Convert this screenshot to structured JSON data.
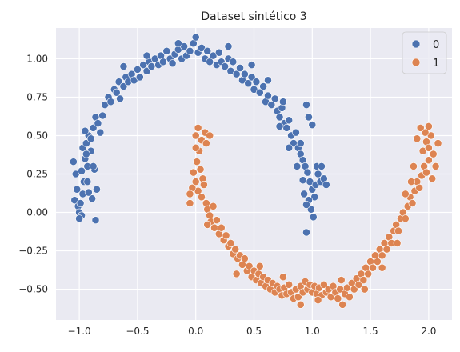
{
  "chart_data": {
    "type": "scatter",
    "title": "Dataset sintético 3",
    "xlabel": "",
    "ylabel": "",
    "xlim": [
      -1.2,
      2.2
    ],
    "ylim": [
      -0.7,
      1.2
    ],
    "x_ticks": [
      -1.0,
      -0.5,
      0.0,
      0.5,
      1.0,
      1.5,
      2.0
    ],
    "y_ticks": [
      -0.5,
      -0.25,
      0.0,
      0.25,
      0.5,
      0.75,
      1.0
    ],
    "x_tick_labels": [
      "−1.0",
      "−0.5",
      "0.0",
      "0.5",
      "1.0",
      "1.5",
      "2.0"
    ],
    "y_tick_labels": [
      "−0.50",
      "−0.25",
      "0.00",
      "0.25",
      "0.50",
      "0.75",
      "1.00"
    ],
    "grid": true,
    "legend_position": "top-right",
    "colors": {
      "background": "#eaeaf2",
      "grid": "#ffffff",
      "series0": "#4c72b0",
      "series1": "#dd8452",
      "marker_edge": "#ffffff"
    },
    "series": [
      {
        "name": "0",
        "color": "#4c72b0",
        "points": [
          [
            -1.05,
            0.33
          ],
          [
            -1.03,
            0.25
          ],
          [
            -1.02,
            0.15
          ],
          [
            -1.04,
            0.08
          ],
          [
            -1.01,
            0.04
          ],
          [
            -1.0,
            0.0
          ],
          [
            -0.98,
            -0.02
          ],
          [
            -0.99,
            0.06
          ],
          [
            -0.97,
            0.12
          ],
          [
            -0.96,
            0.2
          ],
          [
            -0.98,
            0.27
          ],
          [
            -0.95,
            0.35
          ],
          [
            -0.93,
            0.3
          ],
          [
            -0.97,
            0.42
          ],
          [
            -0.94,
            0.45
          ],
          [
            -0.92,
            0.5
          ],
          [
            -0.9,
            0.48
          ],
          [
            -0.95,
            0.53
          ],
          [
            -0.88,
            0.55
          ],
          [
            -0.9,
            0.4
          ],
          [
            -0.87,
            0.28
          ],
          [
            -0.93,
            0.2
          ],
          [
            -0.85,
            0.15
          ],
          [
            -0.89,
            0.09
          ],
          [
            -0.92,
            0.13
          ],
          [
            -0.86,
            0.62
          ],
          [
            -0.84,
            0.58
          ],
          [
            -0.8,
            0.63
          ],
          [
            -0.82,
            0.52
          ],
          [
            -0.78,
            0.7
          ],
          [
            -0.75,
            0.75
          ],
          [
            -0.73,
            0.72
          ],
          [
            -0.7,
            0.8
          ],
          [
            -0.68,
            0.78
          ],
          [
            -0.66,
            0.85
          ],
          [
            -0.65,
            0.74
          ],
          [
            -0.62,
            0.82
          ],
          [
            -0.6,
            0.88
          ],
          [
            -0.58,
            0.85
          ],
          [
            -0.55,
            0.9
          ],
          [
            -0.53,
            0.86
          ],
          [
            -0.5,
            0.93
          ],
          [
            -0.48,
            0.88
          ],
          [
            -0.45,
            0.96
          ],
          [
            -0.42,
            0.92
          ],
          [
            -0.4,
            0.98
          ],
          [
            -0.38,
            0.95
          ],
          [
            -0.35,
            1.0
          ],
          [
            -0.32,
            0.96
          ],
          [
            -0.3,
            1.02
          ],
          [
            -0.28,
            0.98
          ],
          [
            -0.25,
            1.05
          ],
          [
            -0.22,
            1.0
          ],
          [
            -0.2,
            0.97
          ],
          [
            -0.18,
            1.03
          ],
          [
            -0.15,
            1.06
          ],
          [
            -0.12,
            1.0
          ],
          [
            -0.1,
            1.08
          ],
          [
            -0.08,
            1.02
          ],
          [
            -0.05,
            1.05
          ],
          [
            -0.02,
            1.1
          ],
          [
            0.0,
            1.14
          ],
          [
            0.02,
            1.04
          ],
          [
            0.05,
            1.07
          ],
          [
            0.08,
            1.0
          ],
          [
            0.1,
            1.05
          ],
          [
            0.12,
            0.98
          ],
          [
            0.15,
            1.02
          ],
          [
            0.18,
            0.96
          ],
          [
            0.2,
            1.04
          ],
          [
            0.22,
            0.98
          ],
          [
            0.25,
            0.95
          ],
          [
            0.28,
            1.0
          ],
          [
            0.3,
            0.92
          ],
          [
            0.32,
            0.98
          ],
          [
            0.35,
            0.9
          ],
          [
            0.38,
            0.94
          ],
          [
            0.4,
            0.86
          ],
          [
            0.42,
            0.9
          ],
          [
            0.45,
            0.84
          ],
          [
            0.48,
            0.88
          ],
          [
            0.5,
            0.8
          ],
          [
            0.52,
            0.85
          ],
          [
            0.55,
            0.78
          ],
          [
            0.58,
            0.82
          ],
          [
            0.6,
            0.72
          ],
          [
            0.62,
            0.76
          ],
          [
            0.65,
            0.7
          ],
          [
            0.68,
            0.74
          ],
          [
            0.7,
            0.66
          ],
          [
            0.72,
            0.62
          ],
          [
            0.74,
            0.68
          ],
          [
            0.76,
            0.58
          ],
          [
            0.78,
            0.55
          ],
          [
            0.8,
            0.6
          ],
          [
            0.82,
            0.5
          ],
          [
            0.84,
            0.45
          ],
          [
            0.86,
            0.52
          ],
          [
            0.88,
            0.42
          ],
          [
            0.9,
            0.38
          ],
          [
            0.92,
            0.34
          ],
          [
            0.94,
            0.3
          ],
          [
            0.96,
            0.26
          ],
          [
            0.98,
            0.2
          ],
          [
            1.0,
            0.15
          ],
          [
            1.02,
            0.1
          ],
          [
            0.97,
            0.08
          ],
          [
            0.99,
            0.02
          ],
          [
            1.01,
            -0.03
          ],
          [
            0.95,
            0.05
          ],
          [
            0.93,
            0.12
          ],
          [
            1.03,
            0.18
          ],
          [
            1.05,
            0.25
          ],
          [
            1.07,
            0.2
          ],
          [
            1.04,
            0.3
          ],
          [
            1.08,
            0.3
          ],
          [
            1.1,
            0.22
          ],
          [
            1.12,
            0.18
          ],
          [
            0.97,
            0.62
          ],
          [
            0.95,
            0.7
          ],
          [
            1.0,
            0.57
          ],
          [
            0.9,
            0.45
          ],
          [
            -0.62,
            0.95
          ],
          [
            -0.42,
            1.02
          ],
          [
            -0.15,
            1.1
          ],
          [
            0.28,
            1.08
          ],
          [
            0.48,
            0.96
          ],
          [
            0.62,
            0.86
          ],
          [
            0.75,
            0.72
          ],
          [
            0.72,
            0.56
          ],
          [
            0.8,
            0.42
          ],
          [
            0.87,
            0.3
          ],
          [
            0.92,
            0.21
          ],
          [
            -1.0,
            -0.04
          ],
          [
            -0.86,
            -0.05
          ],
          [
            -0.88,
            0.3
          ],
          [
            -0.94,
            0.38
          ],
          [
            0.95,
            -0.13
          ]
        ]
      },
      {
        "name": "1",
        "color": "#dd8452",
        "points": [
          [
            0.0,
            0.5
          ],
          [
            0.02,
            0.55
          ],
          [
            0.05,
            0.47
          ],
          [
            0.08,
            0.52
          ],
          [
            0.12,
            0.5
          ],
          [
            0.03,
            0.4
          ],
          [
            0.01,
            0.33
          ],
          [
            0.04,
            0.28
          ],
          [
            0.06,
            0.22
          ],
          [
            0.0,
            0.2
          ],
          [
            0.02,
            0.14
          ],
          [
            0.05,
            0.1
          ],
          [
            -0.03,
            0.16
          ],
          [
            -0.05,
            0.12
          ],
          [
            0.07,
            0.18
          ],
          [
            0.09,
            0.06
          ],
          [
            0.1,
            0.02
          ],
          [
            0.12,
            -0.02
          ],
          [
            0.15,
            0.04
          ],
          [
            0.13,
            -0.06
          ],
          [
            0.16,
            -0.1
          ],
          [
            0.18,
            -0.05
          ],
          [
            0.2,
            -0.14
          ],
          [
            0.22,
            -0.1
          ],
          [
            0.24,
            -0.18
          ],
          [
            0.26,
            -0.15
          ],
          [
            0.28,
            -0.22
          ],
          [
            0.3,
            -0.2
          ],
          [
            0.32,
            -0.27
          ],
          [
            0.34,
            -0.24
          ],
          [
            0.36,
            -0.3
          ],
          [
            0.38,
            -0.28
          ],
          [
            0.4,
            -0.34
          ],
          [
            0.42,
            -0.3
          ],
          [
            0.44,
            -0.38
          ],
          [
            0.46,
            -0.35
          ],
          [
            0.48,
            -0.42
          ],
          [
            0.5,
            -0.38
          ],
          [
            0.52,
            -0.44
          ],
          [
            0.54,
            -0.4
          ],
          [
            0.56,
            -0.46
          ],
          [
            0.58,
            -0.42
          ],
          [
            0.6,
            -0.48
          ],
          [
            0.62,
            -0.44
          ],
          [
            0.64,
            -0.5
          ],
          [
            0.66,
            -0.46
          ],
          [
            0.68,
            -0.52
          ],
          [
            0.7,
            -0.48
          ],
          [
            0.72,
            -0.5
          ],
          [
            0.74,
            -0.54
          ],
          [
            0.76,
            -0.49
          ],
          [
            0.78,
            -0.53
          ],
          [
            0.8,
            -0.47
          ],
          [
            0.82,
            -0.52
          ],
          [
            0.84,
            -0.56
          ],
          [
            0.86,
            -0.5
          ],
          [
            0.88,
            -0.55
          ],
          [
            0.9,
            -0.48
          ],
          [
            0.92,
            -0.52
          ],
          [
            0.94,
            -0.45
          ],
          [
            0.96,
            -0.5
          ],
          [
            0.98,
            -0.47
          ],
          [
            1.0,
            -0.52
          ],
          [
            1.02,
            -0.48
          ],
          [
            1.04,
            -0.53
          ],
          [
            1.06,
            -0.49
          ],
          [
            1.08,
            -0.54
          ],
          [
            1.1,
            -0.47
          ],
          [
            1.12,
            -0.52
          ],
          [
            1.14,
            -0.5
          ],
          [
            1.16,
            -0.55
          ],
          [
            1.18,
            -0.48
          ],
          [
            1.2,
            -0.52
          ],
          [
            1.22,
            -0.56
          ],
          [
            1.24,
            -0.5
          ],
          [
            1.26,
            -0.6
          ],
          [
            1.28,
            -0.53
          ],
          [
            1.3,
            -0.49
          ],
          [
            1.32,
            -0.55
          ],
          [
            1.34,
            -0.46
          ],
          [
            1.36,
            -0.5
          ],
          [
            1.38,
            -0.43
          ],
          [
            1.4,
            -0.47
          ],
          [
            1.42,
            -0.4
          ],
          [
            1.44,
            -0.44
          ],
          [
            1.46,
            -0.36
          ],
          [
            1.48,
            -0.4
          ],
          [
            1.5,
            -0.32
          ],
          [
            1.52,
            -0.36
          ],
          [
            1.54,
            -0.28
          ],
          [
            1.56,
            -0.32
          ],
          [
            1.58,
            -0.24
          ],
          [
            1.6,
            -0.28
          ],
          [
            1.62,
            -0.2
          ],
          [
            1.64,
            -0.24
          ],
          [
            1.66,
            -0.16
          ],
          [
            1.68,
            -0.2
          ],
          [
            1.7,
            -0.12
          ],
          [
            1.72,
            -0.08
          ],
          [
            1.74,
            -0.12
          ],
          [
            1.76,
            -0.04
          ],
          [
            1.78,
            0.0
          ],
          [
            1.8,
            -0.04
          ],
          [
            1.82,
            0.04
          ],
          [
            1.84,
            0.1
          ],
          [
            1.86,
            0.06
          ],
          [
            1.88,
            0.14
          ],
          [
            1.9,
            0.2
          ],
          [
            1.92,
            0.16
          ],
          [
            1.94,
            0.24
          ],
          [
            1.96,
            0.3
          ],
          [
            1.98,
            0.26
          ],
          [
            2.0,
            0.34
          ],
          [
            1.95,
            0.4
          ],
          [
            1.98,
            0.46
          ],
          [
            2.0,
            0.42
          ],
          [
            2.02,
            0.5
          ],
          [
            2.04,
            0.38
          ],
          [
            2.06,
            0.3
          ],
          [
            2.03,
            0.22
          ],
          [
            1.97,
            0.52
          ],
          [
            1.93,
            0.55
          ],
          [
            2.0,
            0.56
          ],
          [
            1.9,
            0.48
          ],
          [
            1.87,
            0.3
          ],
          [
            1.85,
            0.2
          ],
          [
            2.08,
            0.45
          ],
          [
            -0.05,
            0.06
          ],
          [
            0.1,
            -0.08
          ],
          [
            0.35,
            -0.4
          ],
          [
            0.55,
            -0.35
          ],
          [
            0.75,
            -0.42
          ],
          [
            0.9,
            -0.6
          ],
          [
            1.05,
            -0.57
          ],
          [
            1.25,
            -0.44
          ],
          [
            1.45,
            -0.5
          ],
          [
            1.6,
            -0.36
          ],
          [
            1.73,
            -0.2
          ],
          [
            1.8,
            0.12
          ],
          [
            0.0,
            0.42
          ],
          [
            0.09,
            0.45
          ],
          [
            -0.02,
            0.26
          ]
        ]
      }
    ]
  }
}
